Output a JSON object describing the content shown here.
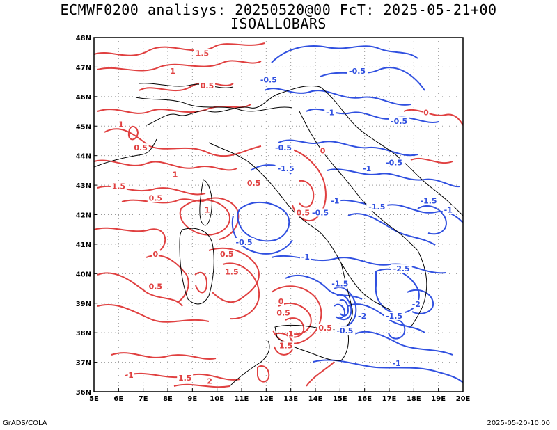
{
  "title": {
    "line1": "ECMWF0200 analisys: 20250520@00 FcT: 2025-05-21+00",
    "line2": "ISOALLOBARS"
  },
  "footer": {
    "left": "GrADS/COLA",
    "right": "2025-05-20-10:00"
  },
  "axes": {
    "lon_ticks": [
      "5E",
      "6E",
      "7E",
      "8E",
      "9E",
      "10E",
      "11E",
      "12E",
      "13E",
      "14E",
      "15E",
      "16E",
      "17E",
      "18E",
      "19E",
      "20E"
    ],
    "lat_ticks": [
      "36N",
      "37N",
      "38N",
      "39N",
      "40N",
      "41N",
      "42N",
      "43N",
      "44N",
      "45N",
      "46N",
      "47N",
      "48N"
    ],
    "lon_range": [
      5,
      20
    ],
    "lat_range": [
      36,
      48
    ],
    "grid": "dotted"
  },
  "colors": {
    "positive": "#e04040",
    "negative": "#3050e0",
    "coast": "#000000",
    "grid": "#999999"
  },
  "contour_labels": [
    {
      "text": "1.5",
      "lon": 9.4,
      "lat": 47.4,
      "sign": "pos"
    },
    {
      "text": "1",
      "lon": 8.2,
      "lat": 46.8,
      "sign": "pos"
    },
    {
      "text": "0.5",
      "lon": 9.6,
      "lat": 46.3,
      "sign": "pos"
    },
    {
      "text": "1",
      "lon": 6.1,
      "lat": 45.0,
      "sign": "pos"
    },
    {
      "text": "0.5",
      "lon": 6.9,
      "lat": 44.2,
      "sign": "pos"
    },
    {
      "text": "1",
      "lon": 8.3,
      "lat": 43.3,
      "sign": "pos"
    },
    {
      "text": "1.5",
      "lon": 6.0,
      "lat": 42.9,
      "sign": "pos"
    },
    {
      "text": "0.5",
      "lon": 7.5,
      "lat": 42.5,
      "sign": "pos"
    },
    {
      "text": "1",
      "lon": 9.6,
      "lat": 42.1,
      "sign": "pos"
    },
    {
      "text": "0.5",
      "lon": 11.5,
      "lat": 43.0,
      "sign": "pos"
    },
    {
      "text": "0",
      "lon": 7.5,
      "lat": 40.6,
      "sign": "pos"
    },
    {
      "text": "0.5",
      "lon": 7.5,
      "lat": 39.5,
      "sign": "pos"
    },
    {
      "text": "0.5",
      "lon": 10.4,
      "lat": 40.6,
      "sign": "pos"
    },
    {
      "text": "1.5",
      "lon": 10.6,
      "lat": 40.0,
      "sign": "pos"
    },
    {
      "text": "0",
      "lon": 12.6,
      "lat": 39.0,
      "sign": "pos"
    },
    {
      "text": "0.5",
      "lon": 12.7,
      "lat": 38.6,
      "sign": "pos"
    },
    {
      "text": "0.5",
      "lon": 14.4,
      "lat": 38.1,
      "sign": "pos"
    },
    {
      "text": "1",
      "lon": 13.0,
      "lat": 37.9,
      "sign": "pos"
    },
    {
      "text": "1.5",
      "lon": 12.8,
      "lat": 37.5,
      "sign": "pos"
    },
    {
      "text": "1",
      "lon": 6.5,
      "lat": 36.5,
      "sign": "pos"
    },
    {
      "text": "1.5",
      "lon": 8.7,
      "lat": 36.4,
      "sign": "pos"
    },
    {
      "text": "2",
      "lon": 9.7,
      "lat": 36.3,
      "sign": "pos"
    },
    {
      "text": "0",
      "lon": 14.3,
      "lat": 44.1,
      "sign": "pos"
    },
    {
      "text": "0",
      "lon": 18.5,
      "lat": 45.4,
      "sign": "pos"
    },
    {
      "text": "0.5",
      "lon": 13.5,
      "lat": 42.0,
      "sign": "pos"
    },
    {
      "text": "-0.5",
      "lon": 15.7,
      "lat": 46.8,
      "sign": "neg"
    },
    {
      "text": "-0.5",
      "lon": 12.1,
      "lat": 46.5,
      "sign": "neg"
    },
    {
      "text": "-1",
      "lon": 14.6,
      "lat": 45.4,
      "sign": "neg"
    },
    {
      "text": "-0.5",
      "lon": 17.4,
      "lat": 45.1,
      "sign": "neg"
    },
    {
      "text": "-0.5",
      "lon": 12.7,
      "lat": 44.2,
      "sign": "neg"
    },
    {
      "text": "-0.5",
      "lon": 17.2,
      "lat": 43.7,
      "sign": "neg"
    },
    {
      "text": "-1.5",
      "lon": 12.8,
      "lat": 43.5,
      "sign": "neg"
    },
    {
      "text": "-1",
      "lon": 16.1,
      "lat": 43.5,
      "sign": "neg"
    },
    {
      "text": "-1",
      "lon": 14.8,
      "lat": 42.4,
      "sign": "neg"
    },
    {
      "text": "-1.5",
      "lon": 16.5,
      "lat": 42.2,
      "sign": "neg"
    },
    {
      "text": "-1.5",
      "lon": 18.6,
      "lat": 42.4,
      "sign": "neg"
    },
    {
      "text": "-1",
      "lon": 19.4,
      "lat": 42.1,
      "sign": "neg"
    },
    {
      "text": "-0.5",
      "lon": 14.2,
      "lat": 42.0,
      "sign": "neg"
    },
    {
      "text": "-0.5",
      "lon": 11.1,
      "lat": 41.0,
      "sign": "neg"
    },
    {
      "text": "-1",
      "lon": 13.6,
      "lat": 40.5,
      "sign": "neg"
    },
    {
      "text": "-2.5",
      "lon": 17.5,
      "lat": 40.1,
      "sign": "neg"
    },
    {
      "text": "-1.5",
      "lon": 15.0,
      "lat": 39.6,
      "sign": "neg"
    },
    {
      "text": "-2",
      "lon": 18.1,
      "lat": 38.9,
      "sign": "neg"
    },
    {
      "text": "-1.5",
      "lon": 17.2,
      "lat": 38.5,
      "sign": "neg"
    },
    {
      "text": "-2",
      "lon": 15.9,
      "lat": 38.5,
      "sign": "neg"
    },
    {
      "text": "-0.5",
      "lon": 15.2,
      "lat": 38.0,
      "sign": "neg"
    },
    {
      "text": "-1",
      "lon": 17.3,
      "lat": 36.9,
      "sign": "neg"
    }
  ]
}
